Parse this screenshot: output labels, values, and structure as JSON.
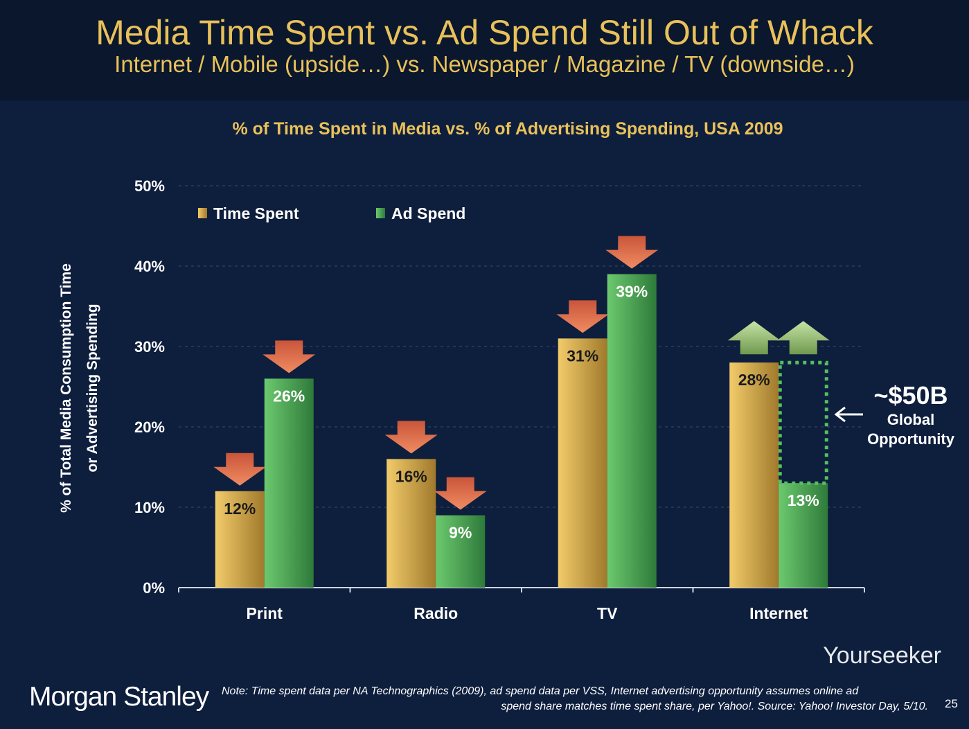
{
  "header": {
    "title": "Media Time Spent vs. Ad Spend Still Out of Whack",
    "subtitle": "Internet / Mobile (upside…) vs. Newspaper / Magazine / TV (downside…)"
  },
  "chart_data": {
    "type": "bar",
    "title": "% of Time Spent in Media vs. % of Advertising Spending, USA 2009",
    "ylabel_lines": [
      "% of Total Media Consumption Time",
      "or Advertising Spending"
    ],
    "categories": [
      "Print",
      "Radio",
      "TV",
      "Internet"
    ],
    "series": [
      {
        "name": "Time Spent",
        "values": [
          12,
          16,
          31,
          28
        ],
        "labels": [
          "12%",
          "16%",
          "31%",
          "28%"
        ],
        "color": "#e3b64e"
      },
      {
        "name": "Ad Spend",
        "values": [
          26,
          9,
          39,
          13
        ],
        "labels": [
          "26%",
          "9%",
          "39%",
          "13%"
        ],
        "color": "#55b45a"
      }
    ],
    "ylim": [
      0,
      50
    ],
    "yticks": [
      "0%",
      "10%",
      "20%",
      "30%",
      "40%",
      "50%"
    ],
    "grid": true,
    "legend": "top-left",
    "trend_arrows": [
      "down",
      "down",
      "down",
      "up"
    ],
    "arrow_colors": {
      "down": "#e0704a",
      "up": "#a9cf8a"
    },
    "opportunity_gap": {
      "category": "Internet",
      "from": 13,
      "to": 28
    }
  },
  "annotation": {
    "amount": "~$50B",
    "line1": "Global",
    "line2": "Opportunity"
  },
  "footer": {
    "logo": "Morgan Stanley",
    "note_line1": "Note: Time spent data per NA Technographics (2009), ad spend data per VSS, Internet advertising opportunity assumes online ad",
    "note_line2": "spend share matches time spent share, per Yahoo!. Source: Yahoo! Investor Day, 5/10.",
    "page": "25",
    "watermark": "Yourseeker"
  }
}
